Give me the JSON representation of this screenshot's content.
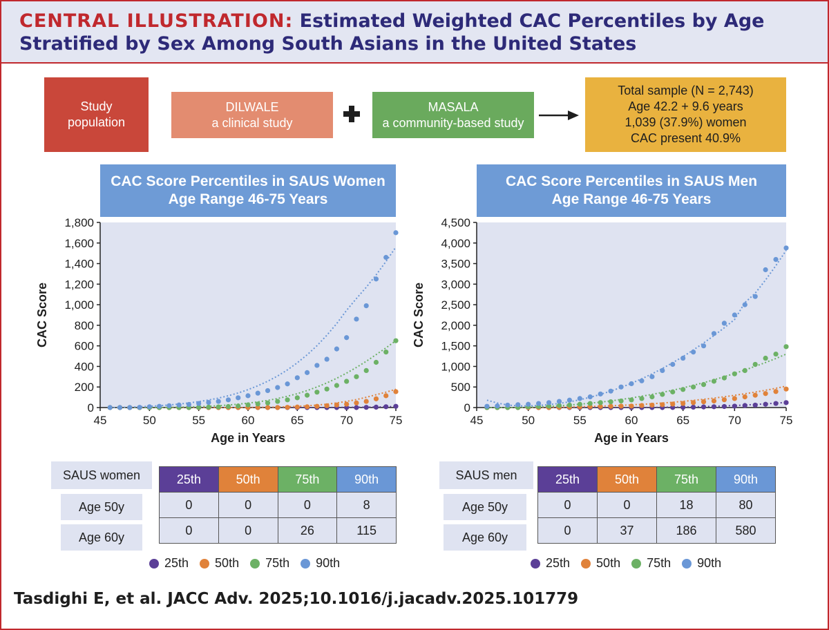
{
  "header": {
    "label": "CENTRAL ILLUSTRATION:",
    "title": "Estimated Weighted CAC Percentiles by Age Stratified by Sex Among South Asians in the United States"
  },
  "flow": {
    "study_population": [
      "Study",
      "population"
    ],
    "dilwale": [
      "DILWALE",
      "a clinical study"
    ],
    "masala": [
      "MASALA",
      "a community-based study"
    ],
    "total": [
      "Total sample (N = 2,743)",
      "Age 42.2 + 9.6 years",
      "1,039 (37.9%) women",
      "CAC present 40.9%"
    ]
  },
  "colors": {
    "p25": "#5b3f97",
    "p50": "#e0823a",
    "p75": "#6cb165",
    "p90": "#6a97d6",
    "axis": "#222222"
  },
  "chart_data": [
    {
      "type": "scatter",
      "id": "women",
      "title": [
        "CAC Score Percentiles in SAUS Women",
        "Age Range 46-75 Years"
      ],
      "xlabel": "Age in Years",
      "ylabel": "CAC Score",
      "xlim": [
        45,
        75
      ],
      "ylim": [
        0,
        1800
      ],
      "xticks": [
        45,
        50,
        55,
        60,
        65,
        70,
        75
      ],
      "yticks": [
        0,
        200,
        400,
        600,
        800,
        1000,
        1200,
        1400,
        1600,
        1800
      ],
      "ytick_labels": [
        "0",
        "200",
        "400",
        "600",
        "800",
        "1,000",
        "1,200",
        "1,400",
        "1,600",
        "1,800"
      ],
      "x": [
        46,
        47,
        48,
        49,
        50,
        51,
        52,
        53,
        54,
        55,
        56,
        57,
        58,
        59,
        60,
        61,
        62,
        63,
        64,
        65,
        66,
        67,
        68,
        69,
        70,
        71,
        72,
        73,
        74,
        75
      ],
      "series": [
        {
          "name": "25th",
          "key": "p25",
          "values": [
            0,
            0,
            0,
            0,
            0,
            0,
            0,
            0,
            0,
            0,
            0,
            0,
            0,
            0,
            0,
            0,
            0,
            0,
            0,
            0,
            0,
            0,
            0,
            0,
            0,
            0,
            2,
            4,
            8,
            12
          ],
          "trend": [
            0,
            0,
            0,
            0,
            0,
            0,
            0,
            0,
            0,
            0,
            0,
            0,
            0,
            0,
            0,
            0,
            0,
            0,
            0,
            0,
            0,
            0,
            1,
            1,
            2,
            3,
            4,
            6,
            8,
            11
          ]
        },
        {
          "name": "50th",
          "key": "p50",
          "values": [
            0,
            0,
            0,
            0,
            0,
            0,
            0,
            0,
            0,
            0,
            0,
            0,
            0,
            0,
            0,
            0,
            0,
            0,
            2,
            5,
            8,
            12,
            18,
            25,
            33,
            45,
            60,
            85,
            115,
            155
          ],
          "trend": [
            0,
            0,
            0,
            0,
            0,
            0,
            0,
            0,
            0,
            0,
            0,
            0,
            0,
            0,
            1,
            2,
            3,
            5,
            8,
            12,
            17,
            24,
            33,
            45,
            60,
            78,
            100,
            125,
            150,
            178
          ]
        },
        {
          "name": "75th",
          "key": "p75",
          "values": [
            0,
            0,
            0,
            0,
            0,
            0,
            0,
            0,
            0,
            2,
            4,
            6,
            10,
            15,
            26,
            35,
            45,
            60,
            75,
            95,
            120,
            150,
            180,
            215,
            255,
            300,
            360,
            440,
            540,
            650
          ],
          "trend": [
            0,
            0,
            0,
            0,
            0,
            1,
            2,
            4,
            6,
            9,
            13,
            18,
            25,
            33,
            43,
            55,
            70,
            88,
            110,
            135,
            165,
            200,
            240,
            285,
            335,
            390,
            450,
            515,
            580,
            650
          ]
        },
        {
          "name": "90th",
          "key": "p90",
          "values": [
            0,
            0,
            0,
            2,
            8,
            12,
            18,
            25,
            30,
            40,
            50,
            60,
            75,
            95,
            115,
            140,
            165,
            195,
            230,
            290,
            340,
            410,
            470,
            570,
            680,
            860,
            990,
            1250,
            1460,
            1700
          ],
          "trend": [
            0,
            2,
            4,
            8,
            12,
            18,
            25,
            34,
            45,
            58,
            73,
            92,
            115,
            142,
            174,
            212,
            256,
            307,
            367,
            435,
            513,
            602,
            703,
            817,
            946,
            1060,
            1170,
            1290,
            1420,
            1560
          ]
        }
      ]
    },
    {
      "type": "scatter",
      "id": "men",
      "title": [
        "CAC Score Percentiles in SAUS Men",
        "Age Range 46-75 Years"
      ],
      "xlabel": "Age in Years",
      "ylabel": "CAC Score",
      "xlim": [
        45,
        75
      ],
      "ylim": [
        0,
        4500
      ],
      "xticks": [
        45,
        50,
        55,
        60,
        65,
        70,
        75
      ],
      "yticks": [
        0,
        500,
        1000,
        1500,
        2000,
        2500,
        3000,
        3500,
        4000,
        4500
      ],
      "ytick_labels": [
        "0",
        "500",
        "1,000",
        "1,500",
        "2,000",
        "2,500",
        "3,000",
        "3,500",
        "4,000",
        "4,500"
      ],
      "x": [
        46,
        47,
        48,
        49,
        50,
        51,
        52,
        53,
        54,
        55,
        56,
        57,
        58,
        59,
        60,
        61,
        62,
        63,
        64,
        65,
        66,
        67,
        68,
        69,
        70,
        71,
        72,
        73,
        74,
        75
      ],
      "series": [
        {
          "name": "25th",
          "key": "p25",
          "values": [
            0,
            0,
            0,
            0,
            0,
            0,
            0,
            0,
            0,
            0,
            0,
            0,
            0,
            0,
            0,
            0,
            0,
            0,
            2,
            5,
            10,
            15,
            20,
            25,
            35,
            50,
            60,
            80,
            100,
            120
          ],
          "trend": [
            0,
            0,
            0,
            0,
            0,
            0,
            0,
            0,
            0,
            0,
            0,
            0,
            0,
            0,
            1,
            2,
            4,
            6,
            9,
            13,
            18,
            24,
            31,
            40,
            50,
            62,
            75,
            90,
            107,
            125
          ]
        },
        {
          "name": "50th",
          "key": "p50",
          "values": [
            0,
            0,
            0,
            0,
            0,
            0,
            0,
            5,
            10,
            15,
            20,
            25,
            30,
            35,
            37,
            50,
            60,
            70,
            85,
            100,
            120,
            140,
            160,
            190,
            220,
            260,
            300,
            340,
            390,
            450
          ],
          "trend": [
            0,
            0,
            0,
            0,
            0,
            2,
            5,
            9,
            14,
            20,
            27,
            35,
            44,
            54,
            66,
            79,
            94,
            111,
            130,
            151,
            175,
            201,
            230,
            262,
            297,
            335,
            376,
            420,
            468,
            520
          ]
        },
        {
          "name": "75th",
          "key": "p75",
          "values": [
            0,
            0,
            0,
            0,
            18,
            25,
            35,
            50,
            60,
            80,
            100,
            120,
            140,
            160,
            186,
            220,
            260,
            320,
            380,
            440,
            500,
            560,
            640,
            720,
            820,
            900,
            1050,
            1200,
            1300,
            1480
          ],
          "trend": [
            0,
            0,
            0,
            0,
            5,
            15,
            28,
            43,
            61,
            82,
            106,
            133,
            163,
            197,
            234,
            275,
            320,
            369,
            422,
            479,
            540,
            605,
            675,
            750,
            830,
            914,
            1002,
            1095,
            1193,
            1300
          ]
        },
        {
          "name": "90th",
          "key": "p90",
          "values": [
            30,
            40,
            60,
            70,
            80,
            100,
            120,
            150,
            180,
            220,
            260,
            330,
            400,
            500,
            580,
            650,
            750,
            900,
            1050,
            1200,
            1350,
            1500,
            1800,
            2050,
            2250,
            2500,
            2700,
            3350,
            3600,
            3880
          ],
          "trend": [
            180,
            110,
            60,
            40,
            40,
            50,
            70,
            100,
            140,
            190,
            250,
            320,
            400,
            490,
            590,
            700,
            820,
            950,
            1090,
            1240,
            1400,
            1570,
            1750,
            1940,
            2140,
            2550,
            2780,
            3100,
            3450,
            3820
          ]
        }
      ]
    }
  ],
  "women_table": {
    "label": "SAUS women",
    "headers": [
      "25th",
      "50th",
      "75th",
      "90th"
    ],
    "rows": [
      {
        "label": "Age 50y",
        "values": [
          "0",
          "0",
          "0",
          "8"
        ]
      },
      {
        "label": "Age 60y",
        "values": [
          "0",
          "0",
          "26",
          "115"
        ]
      }
    ]
  },
  "men_table": {
    "label": "SAUS men",
    "headers": [
      "25th",
      "50th",
      "75th",
      "90th"
    ],
    "rows": [
      {
        "label": "Age 50y",
        "values": [
          "0",
          "0",
          "18",
          "80"
        ]
      },
      {
        "label": "Age 60y",
        "values": [
          "0",
          "37",
          "186",
          "580"
        ]
      }
    ]
  },
  "legend": [
    "25th",
    "50th",
    "75th",
    "90th"
  ],
  "citation": "Tasdighi E, et al. JACC Adv. 2025;10.1016/j.jacadv.2025.101779"
}
